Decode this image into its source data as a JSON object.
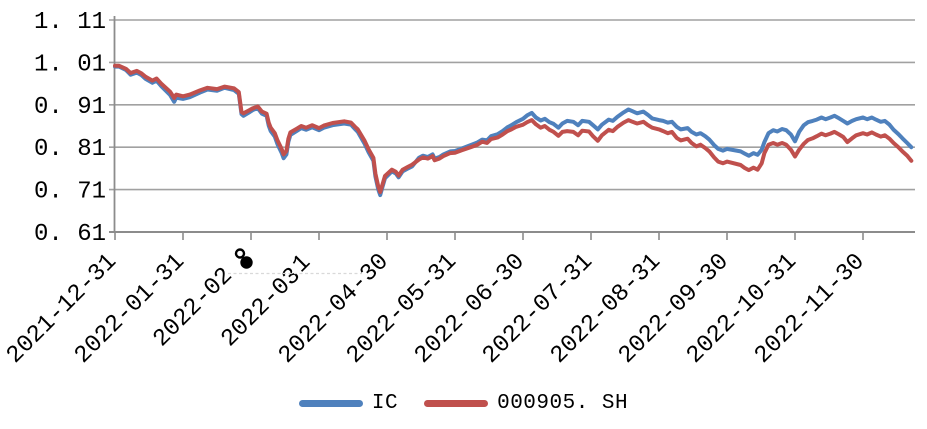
{
  "page": {
    "background": "#FFFFFF",
    "title": ""
  },
  "legend": {
    "position": "bottom-center",
    "items": [
      {
        "label": "IC",
        "color": "#4F81BD"
      },
      {
        "label": "000905. SH",
        "color": "#C0504D"
      }
    ]
  },
  "chart_data": {
    "type": "line",
    "title": "",
    "xlabel": "",
    "ylabel": "",
    "grid": "horizontal",
    "legend_position": "bottom",
    "colors": {
      "grid": "#A1A1A1",
      "axis": "#8C8C8C",
      "text": "#000000",
      "artifact_dash": "#D9D9D9"
    },
    "y_axis": {
      "range": [
        0.61,
        1.11
      ],
      "ticks": [
        1.11,
        1.01,
        0.91,
        0.81,
        0.71,
        0.61
      ],
      "tick_labels": [
        "1. 11",
        "1. 01",
        "0. 91",
        "0. 81",
        "0. 71",
        "0. 61"
      ]
    },
    "x_axis": {
      "note": "monthly ticks; x unit below = months after 2021-12-31; labels 3 and 4 appear truncated in the image with stray glyphs above them",
      "tick_positions": [
        0,
        1,
        2,
        3,
        4,
        5,
        6,
        7,
        8,
        9,
        10,
        11
      ],
      "tick_labels": [
        "2021-12-31",
        "2022-01-31",
        "2022-02",
        "2022-03",
        "2022-04-30",
        "2022-05-31",
        "2022-06-30",
        "2022-07-31",
        "2022-08-31",
        "2022-09-30",
        "2022-10-31",
        "2022-11-30"
      ],
      "truncated_label_indices": [
        2,
        3
      ],
      "stray_glyphs": [
        {
          "glyph": "8",
          "near_tick": "2022-02"
        },
        {
          "glyph": "1",
          "near_tick": "2022-03"
        }
      ]
    },
    "x": [
      0.0,
      0.06,
      0.16,
      0.23,
      0.32,
      0.39,
      0.45,
      0.55,
      0.61,
      0.68,
      0.81,
      0.87,
      0.9,
      1.0,
      1.1,
      1.25,
      1.36,
      1.5,
      1.61,
      1.75,
      1.82,
      1.86,
      1.89,
      1.96,
      2.03,
      2.1,
      2.16,
      2.23,
      2.26,
      2.29,
      2.35,
      2.39,
      2.45,
      2.48,
      2.52,
      2.55,
      2.58,
      2.68,
      2.74,
      2.81,
      2.9,
      3.0,
      3.07,
      3.2,
      3.37,
      3.47,
      3.53,
      3.57,
      3.67,
      3.73,
      3.8,
      3.83,
      3.87,
      3.9,
      3.93,
      3.97,
      4.07,
      4.13,
      4.17,
      4.23,
      4.3,
      4.37,
      4.47,
      4.53,
      4.6,
      4.67,
      4.7,
      4.77,
      4.83,
      4.93,
      5.0,
      5.1,
      5.23,
      5.33,
      5.4,
      5.47,
      5.53,
      5.63,
      5.7,
      5.77,
      5.83,
      5.9,
      6.0,
      6.06,
      6.13,
      6.19,
      6.26,
      6.32,
      6.39,
      6.45,
      6.52,
      6.58,
      6.65,
      6.74,
      6.81,
      6.87,
      6.97,
      7.03,
      7.1,
      7.16,
      7.26,
      7.32,
      7.39,
      7.48,
      7.55,
      7.61,
      7.68,
      7.77,
      7.84,
      7.9,
      8.0,
      8.06,
      8.13,
      8.19,
      8.26,
      8.32,
      8.42,
      8.48,
      8.55,
      8.61,
      8.68,
      8.74,
      8.81,
      8.87,
      8.94,
      9.0,
      9.2,
      9.26,
      9.32,
      9.39,
      9.45,
      9.51,
      9.55,
      9.61,
      9.68,
      9.74,
      9.81,
      9.87,
      9.94,
      10.0,
      10.06,
      10.13,
      10.19,
      10.26,
      10.32,
      10.39,
      10.45,
      10.52,
      10.58,
      10.65,
      10.71,
      10.77,
      10.84,
      10.9,
      11.0,
      11.06,
      11.13,
      11.19,
      11.26,
      11.32,
      11.39,
      11.45,
      11.52,
      11.58,
      11.65,
      11.71
    ],
    "series": [
      {
        "name": "IC",
        "color": "#4F81BD",
        "values": [
          1.0,
          1.0,
          0.992,
          0.981,
          0.986,
          0.98,
          0.971,
          0.962,
          0.967,
          0.954,
          0.933,
          0.917,
          0.927,
          0.924,
          0.928,
          0.939,
          0.946,
          0.943,
          0.95,
          0.945,
          0.936,
          0.888,
          0.884,
          0.891,
          0.898,
          0.902,
          0.889,
          0.884,
          0.861,
          0.848,
          0.835,
          0.817,
          0.797,
          0.784,
          0.793,
          0.823,
          0.839,
          0.849,
          0.855,
          0.851,
          0.857,
          0.85,
          0.856,
          0.862,
          0.866,
          0.863,
          0.853,
          0.846,
          0.818,
          0.798,
          0.778,
          0.741,
          0.711,
          0.697,
          0.714,
          0.737,
          0.753,
          0.748,
          0.739,
          0.753,
          0.759,
          0.765,
          0.785,
          0.79,
          0.787,
          0.793,
          0.783,
          0.787,
          0.793,
          0.8,
          0.801,
          0.807,
          0.815,
          0.821,
          0.828,
          0.826,
          0.836,
          0.841,
          0.848,
          0.857,
          0.862,
          0.869,
          0.877,
          0.885,
          0.891,
          0.88,
          0.873,
          0.877,
          0.869,
          0.865,
          0.856,
          0.866,
          0.872,
          0.87,
          0.862,
          0.872,
          0.87,
          0.862,
          0.852,
          0.863,
          0.875,
          0.872,
          0.882,
          0.892,
          0.899,
          0.895,
          0.89,
          0.894,
          0.886,
          0.878,
          0.874,
          0.872,
          0.868,
          0.87,
          0.858,
          0.852,
          0.855,
          0.846,
          0.84,
          0.843,
          0.836,
          0.828,
          0.815,
          0.806,
          0.802,
          0.806,
          0.8,
          0.795,
          0.79,
          0.796,
          0.792,
          0.804,
          0.822,
          0.843,
          0.85,
          0.847,
          0.853,
          0.85,
          0.84,
          0.824,
          0.846,
          0.862,
          0.869,
          0.872,
          0.875,
          0.88,
          0.876,
          0.88,
          0.884,
          0.878,
          0.872,
          0.866,
          0.872,
          0.876,
          0.88,
          0.876,
          0.88,
          0.875,
          0.87,
          0.872,
          0.863,
          0.851,
          0.841,
          0.831,
          0.82,
          0.81
        ]
      },
      {
        "name": "000905.SH",
        "color": "#C0504D",
        "values": [
          1.002,
          1.002,
          0.995,
          0.985,
          0.99,
          0.984,
          0.976,
          0.967,
          0.972,
          0.96,
          0.941,
          0.926,
          0.934,
          0.93,
          0.934,
          0.944,
          0.95,
          0.947,
          0.953,
          0.949,
          0.94,
          0.893,
          0.89,
          0.896,
          0.902,
          0.906,
          0.894,
          0.889,
          0.868,
          0.856,
          0.843,
          0.826,
          0.806,
          0.793,
          0.801,
          0.83,
          0.845,
          0.854,
          0.86,
          0.856,
          0.862,
          0.855,
          0.861,
          0.867,
          0.871,
          0.868,
          0.858,
          0.852,
          0.825,
          0.805,
          0.785,
          0.748,
          0.718,
          0.704,
          0.72,
          0.742,
          0.757,
          0.752,
          0.743,
          0.757,
          0.763,
          0.769,
          0.781,
          0.786,
          0.783,
          0.789,
          0.779,
          0.783,
          0.789,
          0.796,
          0.797,
          0.803,
          0.81,
          0.816,
          0.823,
          0.82,
          0.829,
          0.833,
          0.84,
          0.848,
          0.852,
          0.858,
          0.863,
          0.869,
          0.874,
          0.864,
          0.856,
          0.86,
          0.851,
          0.846,
          0.837,
          0.846,
          0.848,
          0.846,
          0.838,
          0.849,
          0.847,
          0.836,
          0.825,
          0.838,
          0.851,
          0.848,
          0.858,
          0.868,
          0.874,
          0.87,
          0.866,
          0.87,
          0.862,
          0.856,
          0.852,
          0.848,
          0.843,
          0.846,
          0.832,
          0.826,
          0.83,
          0.82,
          0.812,
          0.816,
          0.808,
          0.8,
          0.786,
          0.776,
          0.772,
          0.776,
          0.768,
          0.761,
          0.756,
          0.762,
          0.757,
          0.772,
          0.796,
          0.816,
          0.82,
          0.816,
          0.82,
          0.816,
          0.804,
          0.788,
          0.804,
          0.818,
          0.827,
          0.831,
          0.836,
          0.842,
          0.838,
          0.842,
          0.846,
          0.84,
          0.834,
          0.822,
          0.831,
          0.838,
          0.843,
          0.84,
          0.845,
          0.84,
          0.835,
          0.838,
          0.83,
          0.82,
          0.81,
          0.8,
          0.79,
          0.778
        ]
      }
    ]
  }
}
